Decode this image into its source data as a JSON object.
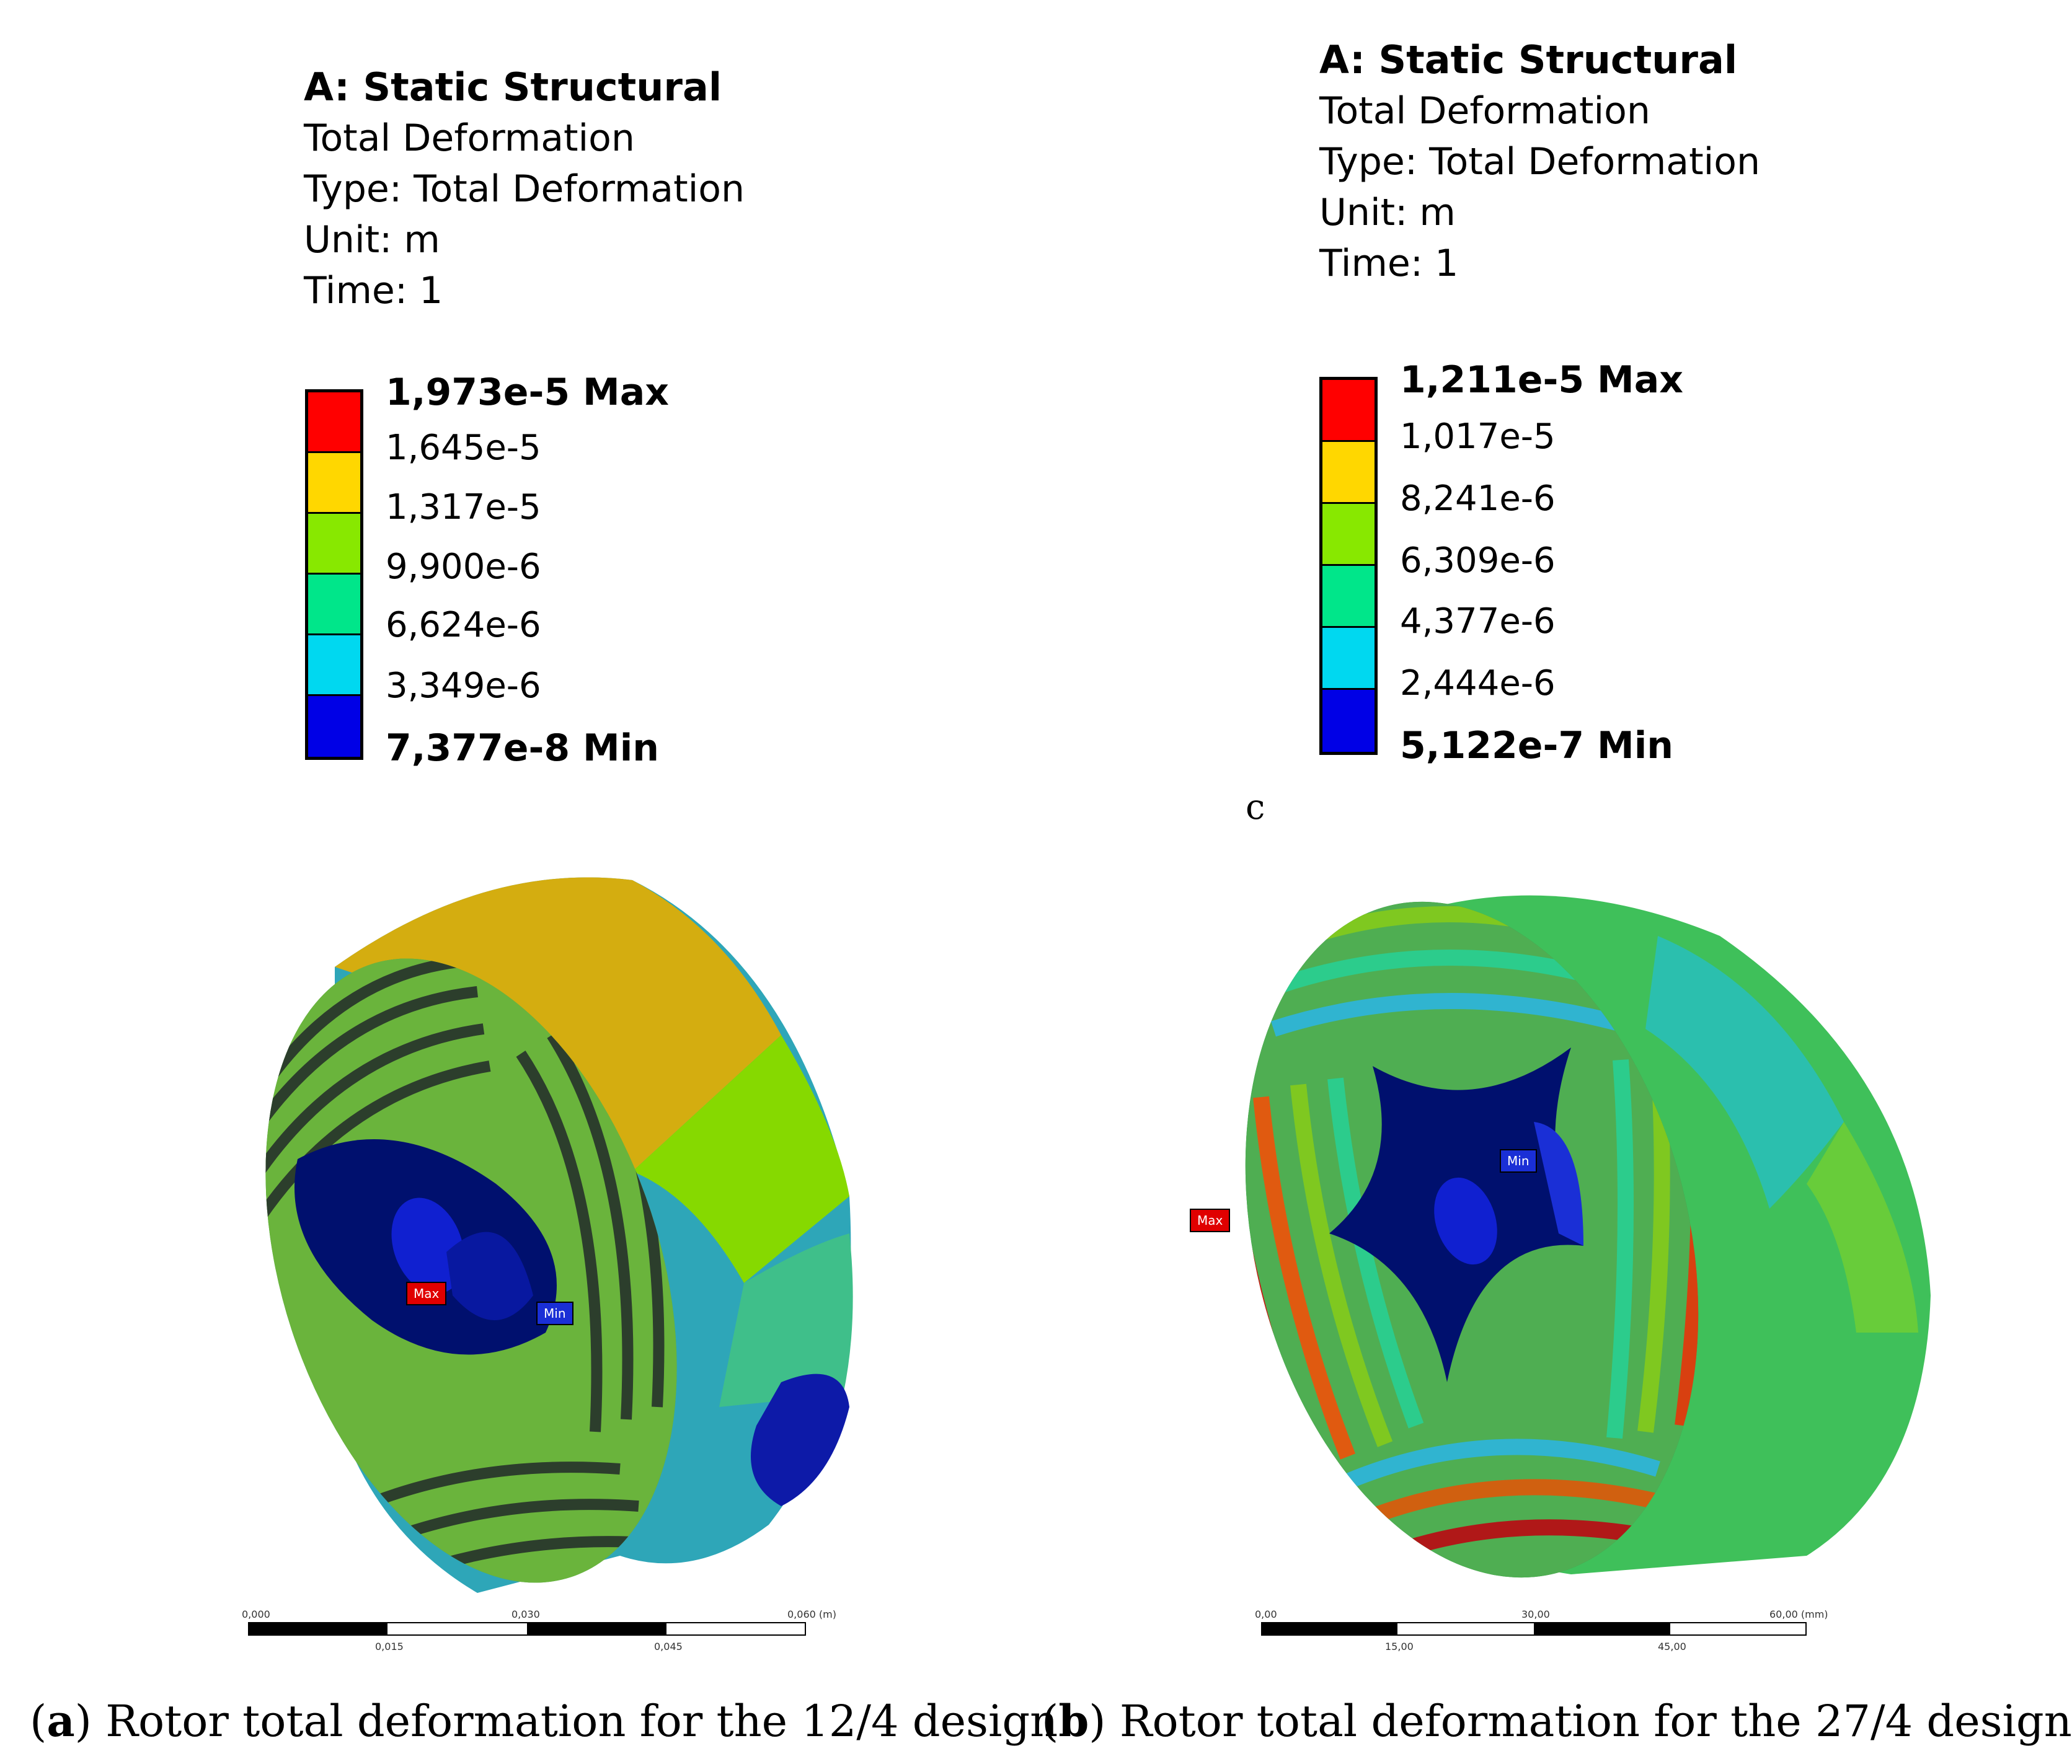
{
  "panel_a": {
    "header": "A: Static Structural",
    "lines": [
      "Total Deformation",
      "Type: Total Deformation",
      "Unit: m",
      "Time: 1"
    ],
    "legend": {
      "max_label": "1,973e-5 Max",
      "levels": [
        "1,645e-5",
        "1,317e-5",
        "9,900e-6",
        "6,624e-6",
        "3,349e-6"
      ],
      "min_label": "7,377e-8 Min",
      "colors": [
        "#ff0000",
        "#ffd700",
        "#88e800",
        "#00e68a",
        "#00d8f0",
        "#0000e6"
      ]
    },
    "probe_max": "Max",
    "probe_min": "Min",
    "scale": {
      "top": [
        "0,000",
        "0,030",
        "0,060 (m)"
      ],
      "bottom": [
        "0,015",
        "0,045"
      ]
    },
    "caption_letter": "a",
    "caption_text": "Rotor total deformation for the 12/4 design"
  },
  "panel_b": {
    "header": "A: Static Structural",
    "lines": [
      "Total Deformation",
      "Type: Total Deformation",
      "Unit: m",
      "Time: 1"
    ],
    "legend": {
      "max_label": "1,211e-5 Max",
      "levels": [
        "1,017e-5",
        "8,241e-6",
        "6,309e-6",
        "4,377e-6",
        "2,444e-6"
      ],
      "min_label": "5,122e-7 Min",
      "colors": [
        "#ff0000",
        "#ffd700",
        "#88e800",
        "#00e68a",
        "#00d8f0",
        "#0000e6"
      ]
    },
    "stray_letter": "c",
    "probe_max": "Max",
    "probe_min": "Min",
    "scale": {
      "top": [
        "0,00",
        "30,00",
        "60,00 (mm)"
      ],
      "bottom": [
        "15,00",
        "45,00"
      ]
    },
    "caption_letter": "b",
    "caption_text": "Rotor total deformation for the 27/4 design"
  }
}
